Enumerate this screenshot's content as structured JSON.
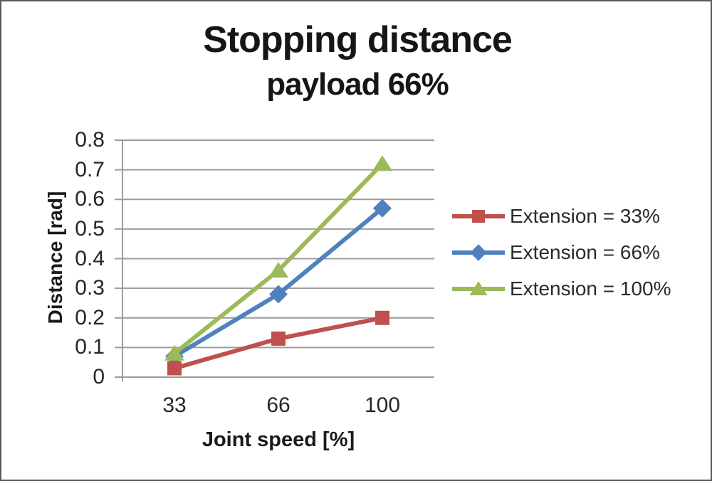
{
  "chart": {
    "title": "Stopping distance",
    "subtitle": "payload 66%"
  },
  "chart_data": {
    "type": "line",
    "title": "Stopping distance",
    "subtitle": "payload 66%",
    "xlabel": "Joint speed [%]",
    "ylabel": "Distance [rad]",
    "categories": [
      "33",
      "66",
      "100"
    ],
    "y_tick_labels": [
      "0.8",
      "0.7",
      "0.6",
      "0.5",
      "0.4",
      "0.3",
      "0.2",
      "0.1",
      "0"
    ],
    "ylim": [
      0,
      0.8
    ],
    "grid": true,
    "legend_position": "right",
    "series": [
      {
        "name": "Extension = 33%",
        "color": "#C0504D",
        "marker": "square",
        "values": [
          0.03,
          0.13,
          0.2
        ]
      },
      {
        "name": "Extension = 66%",
        "color": "#4F81BD",
        "marker": "diamond",
        "values": [
          0.07,
          0.28,
          0.57
        ]
      },
      {
        "name": "Extension = 100%",
        "color": "#9BBB59",
        "marker": "triangle",
        "values": [
          0.08,
          0.36,
          0.72
        ]
      }
    ],
    "colors": {
      "grid": "#9C9C9C",
      "tick_text": "#262626",
      "title_text": "#161616"
    }
  }
}
